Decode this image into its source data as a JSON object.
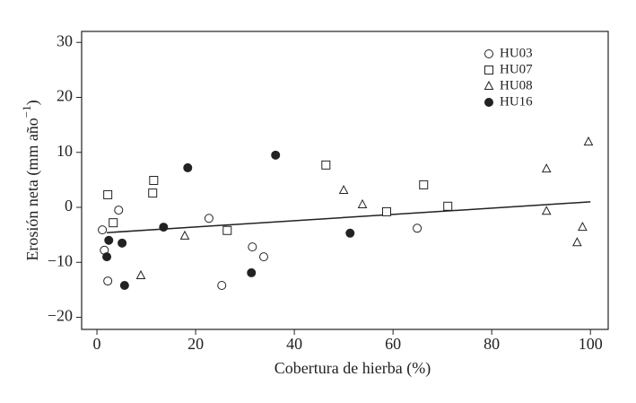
{
  "chart_data": {
    "type": "scatter",
    "xlabel": "Cobertura de hierba (%)",
    "ylabel_parts": [
      "Erosión neta (mm año",
      "−1",
      ")"
    ],
    "xlim": [
      -3.1,
      103.6
    ],
    "ylim": [
      -22.2,
      32.0
    ],
    "xticks": [
      0,
      20,
      40,
      60,
      80,
      100
    ],
    "yticks": [
      {
        "value": -20,
        "label": "−20"
      },
      {
        "value": -10,
        "label": "−10"
      },
      0,
      10,
      20,
      30
    ],
    "legend": "top-right",
    "series": [
      {
        "name": "HU03",
        "marker": "circle-open",
        "color": "#222",
        "x": [
          1.1,
          1.5,
          4.4,
          2.2,
          22.7,
          25.3,
          31.5,
          33.8,
          64.9
        ],
        "values": [
          -4.1,
          -7.8,
          -0.5,
          -13.4,
          -2.0,
          -14.2,
          -7.2,
          -9.0,
          -3.8
        ]
      },
      {
        "name": "HU07",
        "marker": "square-open",
        "color": "#222",
        "x": [
          2.2,
          3.3,
          11.5,
          11.3,
          26.4,
          46.4,
          58.7,
          66.2,
          71.1
        ],
        "values": [
          2.3,
          -2.8,
          4.9,
          2.6,
          -4.2,
          7.7,
          -0.8,
          4.1,
          0.2
        ]
      },
      {
        "name": "HU08",
        "marker": "triangle-open",
        "color": "#222",
        "x": [
          8.9,
          17.8,
          50.0,
          53.8,
          91.1,
          91.1,
          98.4,
          97.3,
          99.6
        ],
        "values": [
          -12.4,
          -5.2,
          3.1,
          0.5,
          7.0,
          -0.7,
          -3.6,
          -6.4,
          11.9
        ]
      },
      {
        "name": "HU16",
        "marker": "circle-filled",
        "color": "#222",
        "x": [
          2.4,
          2.0,
          5.1,
          5.6,
          13.5,
          18.4,
          36.2,
          31.3,
          51.3
        ],
        "values": [
          -6.0,
          -9.0,
          -6.5,
          -14.2,
          -3.6,
          7.2,
          9.5,
          -11.9,
          -4.7
        ]
      }
    ],
    "trend_line": {
      "x": [
        2,
        100
      ],
      "values": [
        -4.6,
        1.0
      ],
      "color": "#222"
    }
  }
}
